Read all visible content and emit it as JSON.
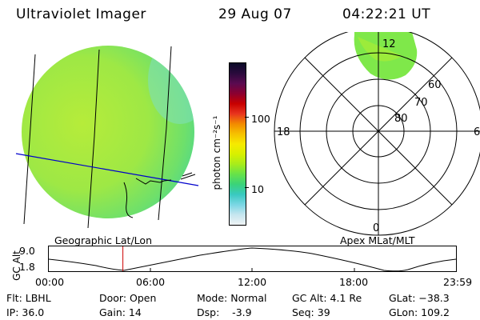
{
  "header": {
    "instrument": "Ultraviolet Imager",
    "date": "29 Aug 07",
    "time": "04:22:21 UT"
  },
  "colorbar": {
    "unit_label": "photon cm⁻²s⁻¹",
    "ticks": [
      "100",
      "10"
    ],
    "colors": [
      "#0b0b28",
      "#2a0a3c",
      "#5a0a50",
      "#8b0030",
      "#c80000",
      "#e8341e",
      "#f28a00",
      "#f6c100",
      "#f6ea00",
      "#d8f000",
      "#a7ec1c",
      "#66e24a",
      "#3ad37a",
      "#39c9c0",
      "#7ad6e4",
      "#c6e6ef",
      "#eef2f4"
    ]
  },
  "globe": {
    "title": "Geographic Lat/Lon",
    "fill_color": "#7fe84a"
  },
  "polar": {
    "title": "Apex MLat/MLT",
    "mlt_labels": {
      "top": "12",
      "left": "18",
      "right": "6",
      "bottom": "0"
    },
    "lat_labels": [
      "60",
      "70",
      "80"
    ]
  },
  "altitude_strip": {
    "axis_label": "GC Alt",
    "y_ticks": [
      "9.0",
      "1.8"
    ],
    "x_ticks": [
      "00:00",
      "06:00",
      "12:00",
      "18:00",
      "23:59"
    ],
    "cursor_time": "04:22",
    "cursor_color": "#cc0000"
  },
  "info": {
    "flt": "Flt: LBHL",
    "ip": "IP: 36.0",
    "door": "Door: Open",
    "gain": "Gain: 14",
    "mode": "Mode: Normal",
    "dsp": "Dsp:    -3.9",
    "gc_alt": "GC Alt: 4.1 Re",
    "seq": "Seq: 39",
    "glat": "GLat: −38.3",
    "glon": "GLon: 109.2"
  }
}
